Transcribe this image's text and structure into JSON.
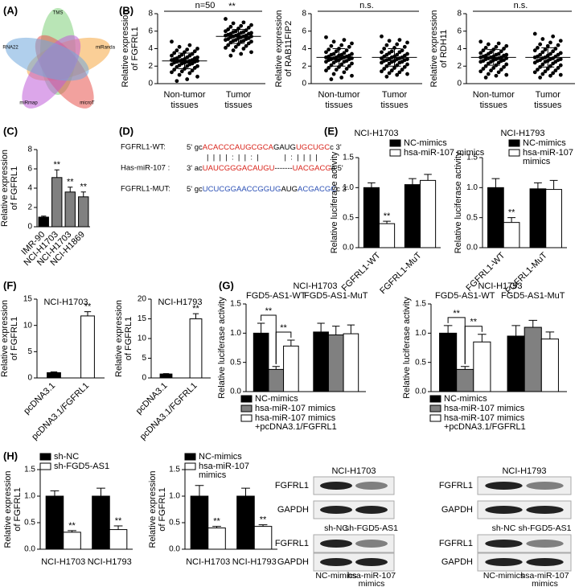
{
  "panel_labels": [
    "(A)",
    "(B)",
    "(C)",
    "(D)",
    "(E)",
    "(F)",
    "(G)",
    "(H)"
  ],
  "venn": {
    "sets": [
      {
        "name": "TMS",
        "color": "#7fd07a"
      },
      {
        "name": "miRanda",
        "color": "#f5a742"
      },
      {
        "name": "microT",
        "color": "#e8544e"
      },
      {
        "name": "miRmap",
        "color": "#c05cd8"
      },
      {
        "name": "RNA22",
        "color": "#6fa8dc"
      }
    ]
  },
  "sequence_panel": {
    "rows": [
      {
        "label": "FGFRL1-WT:",
        "segments": [
          {
            "text": "5' gc",
            "color": "#000000"
          },
          {
            "text": "ACACCC",
            "color": "#d9241b"
          },
          {
            "text": "AUG",
            "color": "#d9241b"
          },
          {
            "text": "CGCA",
            "color": "#d9241b"
          },
          {
            "text": "GAUG",
            "color": "#000000"
          },
          {
            "text": "UGCUGC",
            "color": "#d9241b"
          },
          {
            "text": "c 3'",
            "color": "#000000"
          }
        ]
      },
      {
        "label": "Has-miR-107 :",
        "segments": [
          {
            "text": "3' ac",
            "color": "#000000"
          },
          {
            "text": "UAUCGGGACAUGU",
            "color": "#d9241b"
          },
          {
            "text": "-------",
            "color": "#000000"
          },
          {
            "text": "UACGACG",
            "color": "#d9241b"
          },
          {
            "text": "a 5'",
            "color": "#000000"
          }
        ]
      },
      {
        "label": "FGFRL1-MUT:",
        "segments": [
          {
            "text": "5' gc",
            "color": "#000000"
          },
          {
            "text": "UCUCGGAACCGGUG",
            "color": "#2a4fb5"
          },
          {
            "text": "AUG",
            "color": "#000000"
          },
          {
            "text": "ACGACGC",
            "color": "#2a4fb5"
          },
          {
            "text": "c 3'",
            "color": "#000000"
          }
        ]
      }
    ],
    "pairing": "|  |  |  |  :  |  |  :  |            |  :  |  |  |  |"
  },
  "chart_data": [
    {
      "type": "dot",
      "ylabel": [
        "Relative expression",
        "of FGFRL1"
      ],
      "categories": [
        [
          "Non-tumor",
          "tissues"
        ],
        [
          "Tumor",
          "tissues"
        ]
      ],
      "groups": [
        {
          "values": [
            4.8,
            4.4,
            4.2,
            4.0,
            3.9,
            3.8,
            3.7,
            3.6,
            3.5,
            3.4,
            3.3,
            3.2,
            3.2,
            3.1,
            3.0,
            3.0,
            2.9,
            2.9,
            2.8,
            2.8,
            2.7,
            2.7,
            2.7,
            2.6,
            2.6,
            2.6,
            2.5,
            2.5,
            2.5,
            2.4,
            2.4,
            2.3,
            2.3,
            2.2,
            2.2,
            2.1,
            2.0,
            2.0,
            1.9,
            1.8,
            1.7,
            1.6,
            1.5,
            1.4,
            1.3,
            1.2,
            1.0,
            0.8,
            0.5,
            0.3
          ],
          "mean": 2.6,
          "sd": 0.9
        },
        {
          "values": [
            7.4,
            7.0,
            6.9,
            6.7,
            6.6,
            6.5,
            6.4,
            6.3,
            6.2,
            6.1,
            6.0,
            6.0,
            5.9,
            5.9,
            5.8,
            5.8,
            5.7,
            5.7,
            5.6,
            5.6,
            5.5,
            5.5,
            5.5,
            5.4,
            5.4,
            5.4,
            5.3,
            5.3,
            5.2,
            5.2,
            5.1,
            5.1,
            5.0,
            5.0,
            4.9,
            4.9,
            4.8,
            4.8,
            4.7,
            4.6,
            4.5,
            4.4,
            4.3,
            4.2,
            4.1,
            4.0,
            3.8,
            3.6,
            3.4,
            3.2
          ],
          "mean": 5.4,
          "sd": 0.8
        }
      ],
      "color": "#000000",
      "ylim": [
        0,
        8
      ],
      "yticks": [
        0,
        2,
        4,
        6,
        8
      ],
      "n_label": "n=50",
      "significance": "**"
    },
    {
      "type": "dot",
      "ylabel": [
        "Relative expression",
        "of RAB11FIP2"
      ],
      "categories": [
        [
          "Non-tumor",
          "tissues"
        ],
        [
          "Tumor",
          "tissues"
        ]
      ],
      "groups": [
        {
          "values": [
            5.3,
            5.0,
            4.8,
            4.6,
            4.4,
            4.3,
            4.2,
            4.0,
            3.9,
            3.8,
            3.7,
            3.6,
            3.5,
            3.4,
            3.4,
            3.3,
            3.3,
            3.2,
            3.2,
            3.1,
            3.1,
            3.0,
            3.0,
            3.0,
            2.9,
            2.9,
            2.9,
            2.8,
            2.8,
            2.7,
            2.7,
            2.6,
            2.6,
            2.5,
            2.5,
            2.4,
            2.3,
            2.2,
            2.1,
            2.0,
            1.9,
            1.8,
            1.7,
            1.6,
            1.5,
            1.3,
            1.1,
            0.9,
            0.7,
            0.5
          ],
          "mean": 3.0,
          "sd": 1.0
        },
        {
          "values": [
            5.4,
            5.0,
            4.9,
            4.7,
            4.5,
            4.4,
            4.2,
            4.1,
            4.0,
            3.8,
            3.7,
            3.6,
            3.6,
            3.5,
            3.4,
            3.3,
            3.3,
            3.2,
            3.1,
            3.1,
            3.0,
            3.0,
            2.9,
            2.9,
            2.8,
            2.8,
            2.8,
            2.7,
            2.7,
            2.6,
            2.6,
            2.5,
            2.5,
            2.4,
            2.4,
            2.3,
            2.2,
            2.1,
            2.0,
            1.9,
            1.8,
            1.7,
            1.6,
            1.5,
            1.4,
            1.3,
            1.2,
            1.1,
            1.0,
            0.8
          ],
          "mean": 3.0,
          "sd": 1.0
        }
      ],
      "color": "#000000",
      "ylim": [
        0,
        8
      ],
      "yticks": [
        0,
        2,
        4,
        6,
        8
      ],
      "significance": "n.s."
    },
    {
      "type": "dot",
      "ylabel": [
        "Relative expression",
        "of RDH11"
      ],
      "categories": [
        [
          "Non-tumor",
          "tissues"
        ],
        [
          "Tumor",
          "tissues"
        ]
      ],
      "groups": [
        {
          "values": [
            4.8,
            4.6,
            4.5,
            4.3,
            4.2,
            4.1,
            4.0,
            3.9,
            3.8,
            3.7,
            3.6,
            3.5,
            3.4,
            3.4,
            3.3,
            3.3,
            3.2,
            3.2,
            3.1,
            3.1,
            3.0,
            3.0,
            3.0,
            2.9,
            2.9,
            2.9,
            2.8,
            2.8,
            2.7,
            2.7,
            2.6,
            2.6,
            2.5,
            2.5,
            2.4,
            2.3,
            2.2,
            2.1,
            2.0,
            1.9,
            1.8,
            1.7,
            1.6,
            1.5,
            1.4,
            1.3,
            1.1,
            1.0,
            0.9,
            0.7
          ],
          "mean": 3.0,
          "sd": 0.9
        },
        {
          "values": [
            5.7,
            5.4,
            5.1,
            4.9,
            4.7,
            4.5,
            4.4,
            4.3,
            4.1,
            4.0,
            3.9,
            3.8,
            3.7,
            3.6,
            3.5,
            3.4,
            3.3,
            3.3,
            3.2,
            3.1,
            3.1,
            3.0,
            3.0,
            2.9,
            2.9,
            2.8,
            2.8,
            2.7,
            2.7,
            2.6,
            2.6,
            2.5,
            2.5,
            2.4,
            2.3,
            2.2,
            2.1,
            2.0,
            1.9,
            1.8,
            1.7,
            1.6,
            1.5,
            1.4,
            1.3,
            1.2,
            1.1,
            1.0,
            0.9,
            0.7
          ],
          "mean": 3.0,
          "sd": 1.1
        }
      ],
      "color": "#000000",
      "ylim": [
        0,
        8
      ],
      "yticks": [
        0,
        2,
        4,
        6,
        8
      ],
      "significance": "n.s."
    },
    {
      "type": "bar",
      "ylabel": [
        "Relative expression",
        "of FGFRL1"
      ],
      "categories": [
        "IMR-90",
        "NCI-H1703",
        "NCI-H1703",
        "NCI-H1869"
      ],
      "values": [
        1.0,
        5.1,
        3.6,
        3.1
      ],
      "errors": [
        0.1,
        0.8,
        0.5,
        0.5
      ],
      "labels": [
        null,
        "**",
        "**",
        "**"
      ],
      "colors": [
        "#000000",
        "#808080",
        "#808080",
        "#808080"
      ],
      "ylim": [
        0,
        8
      ],
      "yticks": [
        0,
        2,
        4,
        6,
        8
      ]
    },
    {
      "type": "bar",
      "title": "NCI-H1703",
      "ylabel": [
        "Relative luciferase activity"
      ],
      "categories": [
        "FGFRL1-WT",
        "FGFRL1-MuT"
      ],
      "series": [
        {
          "name": [
            "NC-mimics"
          ],
          "color": "#000000",
          "values": [
            1.0,
            1.05
          ],
          "errors": [
            0.08,
            0.1
          ],
          "labels": [
            null,
            null
          ]
        },
        {
          "name": [
            "hsa-miR-107 mimics"
          ],
          "color": "#ffffff",
          "values": [
            0.4,
            1.12
          ],
          "errors": [
            0.04,
            0.1
          ],
          "labels": [
            "**",
            null
          ]
        }
      ],
      "ylim": [
        0,
        1.5
      ],
      "yticks": [
        {
          "value": 0,
          "label": "0.0"
        },
        0.5,
        {
          "value": 1,
          "label": "1.0"
        },
        1.5
      ]
    },
    {
      "type": "bar",
      "title": "NCI-H1793",
      "ylabel": [
        "Relative luciferase activity"
      ],
      "categories": [
        "FGFRL1-WT",
        "FGFRL1-MuT"
      ],
      "series": [
        {
          "name": [
            "NC-mimics"
          ],
          "color": "#000000",
          "values": [
            1.0,
            0.98
          ],
          "errors": [
            0.15,
            0.1
          ],
          "labels": [
            null,
            null
          ]
        },
        {
          "name": [
            "hsa-miR-107",
            "mimics"
          ],
          "color": "#ffffff",
          "values": [
            0.42,
            0.97
          ],
          "errors": [
            0.08,
            0.15
          ],
          "labels": [
            "**",
            null
          ]
        }
      ],
      "ylim": [
        0,
        1.5
      ],
      "yticks": [
        {
          "value": 0,
          "label": "0.0"
        },
        0.5,
        {
          "value": 1,
          "label": "1.0"
        },
        1.5
      ]
    },
    {
      "type": "bar",
      "title": "NCI-H1703",
      "ylabel": [
        "Relative expression",
        "of  FGFRL1"
      ],
      "categories": [
        "pcDNA3.1",
        "pcDNA3.1/FGFRL1"
      ],
      "values": [
        1.0,
        11.8
      ],
      "errors": [
        0.15,
        0.8
      ],
      "labels": [
        null,
        "**"
      ],
      "colors": [
        "#000000",
        "#ffffff"
      ],
      "ylim": [
        0,
        15
      ],
      "yticks": [
        0,
        5,
        10,
        15
      ]
    },
    {
      "type": "bar",
      "title": "NCI-H1793",
      "ylabel": [
        "Relative expression",
        "of  FGFRL1"
      ],
      "categories": [
        "pcDNA3.1",
        "pcDNA3.1/FGFRL1"
      ],
      "values": [
        1.0,
        15.0
      ],
      "errors": [
        0.1,
        1.3
      ],
      "labels": [
        null,
        "**"
      ],
      "colors": [
        "#000000",
        "#ffffff"
      ],
      "ylim": [
        0,
        20
      ],
      "yticks": [
        0,
        5,
        10,
        15,
        20
      ]
    },
    {
      "type": "bar",
      "title": "NCI-H1703",
      "ylabel": [
        "Relative luciferase activity"
      ],
      "categories": [
        "FGD5-AS1-WT",
        "FGD5-AS1-MuT"
      ],
      "series": [
        {
          "name": [
            "NC-mimics"
          ],
          "color": "#000000",
          "values": [
            1.0,
            1.02
          ],
          "errors": [
            0.17,
            0.15
          ],
          "labels": [
            null,
            null
          ]
        },
        {
          "name": [
            "hsa-miR-107 mimics"
          ],
          "color": "#808080",
          "values": [
            0.38,
            0.97
          ],
          "errors": [
            0.05,
            0.15
          ],
          "labels": [
            "**",
            null
          ]
        },
        {
          "name": [
            "hsa-miR-107 mimics",
            "+pcDNA3.1/FGFRL1"
          ],
          "color": "#ffffff",
          "values": [
            0.78,
            0.99
          ],
          "errors": [
            0.1,
            0.15
          ],
          "labels": [
            "**",
            null
          ]
        }
      ],
      "ylim": [
        0,
        1.5
      ],
      "yticks": [
        {
          "value": 0,
          "label": "0.0"
        },
        0.5,
        {
          "value": 1,
          "label": "1.0"
        },
        1.5
      ]
    },
    {
      "type": "bar",
      "title": "NCI-H1793",
      "ylabel": [
        "Relative luciferase activity"
      ],
      "categories": [
        "FGD5-AS1-WT",
        "FGD5-AS1-MuT"
      ],
      "series": [
        {
          "name": [
            "NC-mimics"
          ],
          "color": "#000000",
          "values": [
            1.0,
            0.95
          ],
          "errors": [
            0.13,
            0.18
          ],
          "labels": [
            null,
            null
          ]
        },
        {
          "name": [
            "hsa-miR-107 mimics"
          ],
          "color": "#808080",
          "values": [
            0.38,
            1.1
          ],
          "errors": [
            0.05,
            0.12
          ],
          "labels": [
            "**",
            null
          ]
        },
        {
          "name": [
            "hsa-miR-107 mimics",
            "+pcDNA3.1/FGFRL1"
          ],
          "color": "#ffffff",
          "values": [
            0.85,
            0.9
          ],
          "errors": [
            0.13,
            0.12
          ],
          "labels": [
            "**",
            null
          ]
        }
      ],
      "ylim": [
        0,
        1.5
      ],
      "yticks": [
        {
          "value": 0,
          "label": "0.0"
        },
        0.5,
        {
          "value": 1,
          "label": "1.0"
        },
        1.5
      ]
    },
    {
      "type": "bar",
      "ylabel": [
        "Relative expression",
        "of FGFRL1"
      ],
      "categories": [
        "NCI-H1703",
        "NCI-H1793"
      ],
      "series": [
        {
          "name": [
            "sh-NC"
          ],
          "color": "#000000",
          "values": [
            1.0,
            1.0
          ],
          "errors": [
            0.1,
            0.15
          ],
          "labels": [
            null,
            null
          ]
        },
        {
          "name": [
            "sh-FGD5-AS1"
          ],
          "color": "#ffffff",
          "values": [
            0.32,
            0.37
          ],
          "errors": [
            0.03,
            0.07
          ],
          "labels": [
            "**",
            "**"
          ]
        }
      ],
      "ylim": [
        0,
        1.5
      ],
      "yticks": [
        {
          "value": 0,
          "label": "0.0"
        },
        0.5,
        {
          "value": 1,
          "label": "1.0"
        },
        1.5
      ]
    },
    {
      "type": "bar",
      "ylabel": [
        "Relative expression",
        "of FGFRL1"
      ],
      "categories": [
        "NCI-H1703",
        "NCI-H1793"
      ],
      "series": [
        {
          "name": [
            "NC-mimics"
          ],
          "color": "#000000",
          "values": [
            1.0,
            1.0
          ],
          "errors": [
            0.2,
            0.15
          ],
          "labels": [
            null,
            null
          ]
        },
        {
          "name": [
            "hsa-miR-107",
            "mimics"
          ],
          "color": "#ffffff",
          "values": [
            0.4,
            0.43
          ],
          "errors": [
            0.03,
            0.03
          ],
          "labels": [
            "**",
            "**"
          ]
        }
      ],
      "ylim": [
        0,
        1.5
      ],
      "yticks": [
        {
          "value": 0,
          "label": "0.0"
        },
        0.5,
        {
          "value": 1,
          "label": "1.0"
        },
        1.5
      ]
    }
  ],
  "blots": [
    {
      "title": "NCI-H1703",
      "panels": [
        {
          "rows": [
            "FGFRL1",
            "GAPDH"
          ],
          "lanes": [
            [
              "sh-NC"
            ],
            [
              "sh-FGD5-AS1"
            ]
          ]
        },
        {
          "rows": [
            "FGFRL1",
            "GAPDH"
          ],
          "lanes": [
            [
              "NC-mimics"
            ],
            [
              "hsa-miR-107",
              "mimics"
            ]
          ]
        }
      ]
    },
    {
      "title": "NCI-H1793",
      "panels": [
        {
          "rows": [
            "FGFRL1",
            "GAPDH"
          ],
          "lanes": [
            [
              "sh-NC"
            ],
            [
              "sh-FGD5-AS1"
            ]
          ]
        },
        {
          "rows": [
            "FGFRL1",
            "GAPDH"
          ],
          "lanes": [
            [
              "NC-mimics"
            ],
            [
              "hsa-miR-107",
              "mimics"
            ]
          ]
        }
      ]
    }
  ]
}
